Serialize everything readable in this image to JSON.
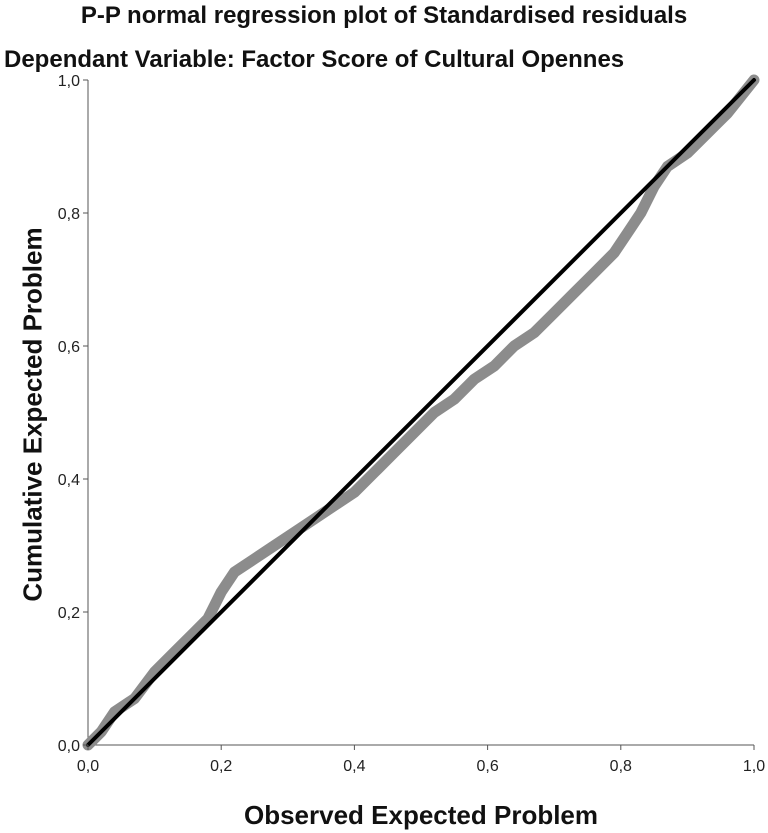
{
  "chart_data": {
    "type": "line",
    "title": "P-P normal regression plot of Standardised residuals",
    "subtitle": "Dependant Variable: Factor Score of Cultural Opennes",
    "xlabel": "Observed Expected Problem",
    "ylabel": "Cumulative Expected Problem",
    "xlim": [
      0,
      1
    ],
    "ylim": [
      0,
      1
    ],
    "xticks": [
      "0,0",
      "0,2",
      "0,4",
      "0,6",
      "0,8",
      "1,0"
    ],
    "yticks": [
      "0,0",
      "0,2",
      "0,4",
      "0,6",
      "0,8",
      "1,0"
    ],
    "grid": false,
    "series": [
      {
        "role": "observed",
        "color": "#8c8c8c",
        "x": [
          0.0,
          0.02,
          0.04,
          0.07,
          0.1,
          0.13,
          0.16,
          0.18,
          0.19,
          0.2,
          0.22,
          0.25,
          0.28,
          0.31,
          0.34,
          0.37,
          0.4,
          0.43,
          0.46,
          0.49,
          0.52,
          0.55,
          0.58,
          0.61,
          0.64,
          0.67,
          0.7,
          0.73,
          0.76,
          0.79,
          0.81,
          0.83,
          0.85,
          0.87,
          0.9,
          0.93,
          0.96,
          1.0
        ],
        "y": [
          0.0,
          0.02,
          0.05,
          0.07,
          0.11,
          0.14,
          0.17,
          0.19,
          0.21,
          0.23,
          0.26,
          0.28,
          0.3,
          0.32,
          0.34,
          0.36,
          0.38,
          0.41,
          0.44,
          0.47,
          0.5,
          0.52,
          0.55,
          0.57,
          0.6,
          0.62,
          0.65,
          0.68,
          0.71,
          0.74,
          0.77,
          0.8,
          0.84,
          0.87,
          0.89,
          0.92,
          0.95,
          1.0
        ]
      },
      {
        "role": "reference",
        "color": "#000000",
        "x": [
          0,
          1
        ],
        "y": [
          0,
          1
        ]
      }
    ]
  }
}
